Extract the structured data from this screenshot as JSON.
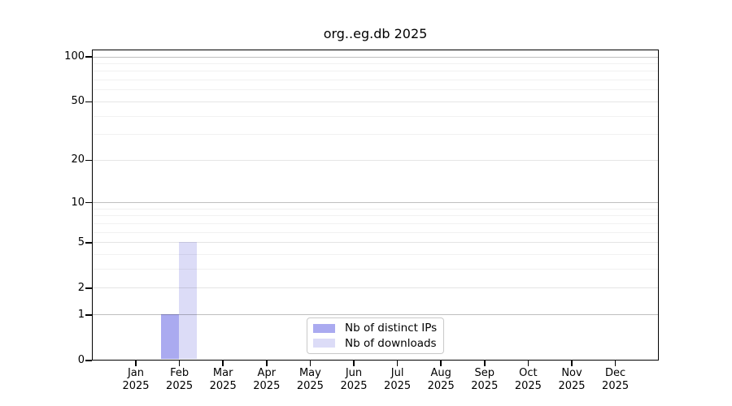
{
  "chart_data": {
    "type": "bar",
    "title": "org..eg.db 2025",
    "year": "2025",
    "months": [
      "Jan",
      "Feb",
      "Mar",
      "Apr",
      "May",
      "Jun",
      "Jul",
      "Aug",
      "Sep",
      "Oct",
      "Nov",
      "Dec"
    ],
    "yscale": "log1p",
    "ylim": [
      0,
      112
    ],
    "y_ticks": [
      0,
      1,
      2,
      5,
      10,
      20,
      50,
      100
    ],
    "y_minor_ticks": [
      3,
      4,
      6,
      7,
      8,
      9,
      30,
      40,
      60,
      70,
      80,
      90
    ],
    "grid": "horizontal",
    "legend_position": "lower center",
    "series": [
      {
        "name": "Nb of distinct IPs",
        "color": "#aaaaf0",
        "values": [
          0,
          1,
          0,
          0,
          0,
          0,
          0,
          0,
          0,
          0,
          0,
          0
        ]
      },
      {
        "name": "Nb of downloads",
        "color": "#dcdcf7",
        "values": [
          0,
          5,
          0,
          0,
          0,
          0,
          0,
          0,
          0,
          0,
          0,
          0
        ]
      }
    ]
  }
}
